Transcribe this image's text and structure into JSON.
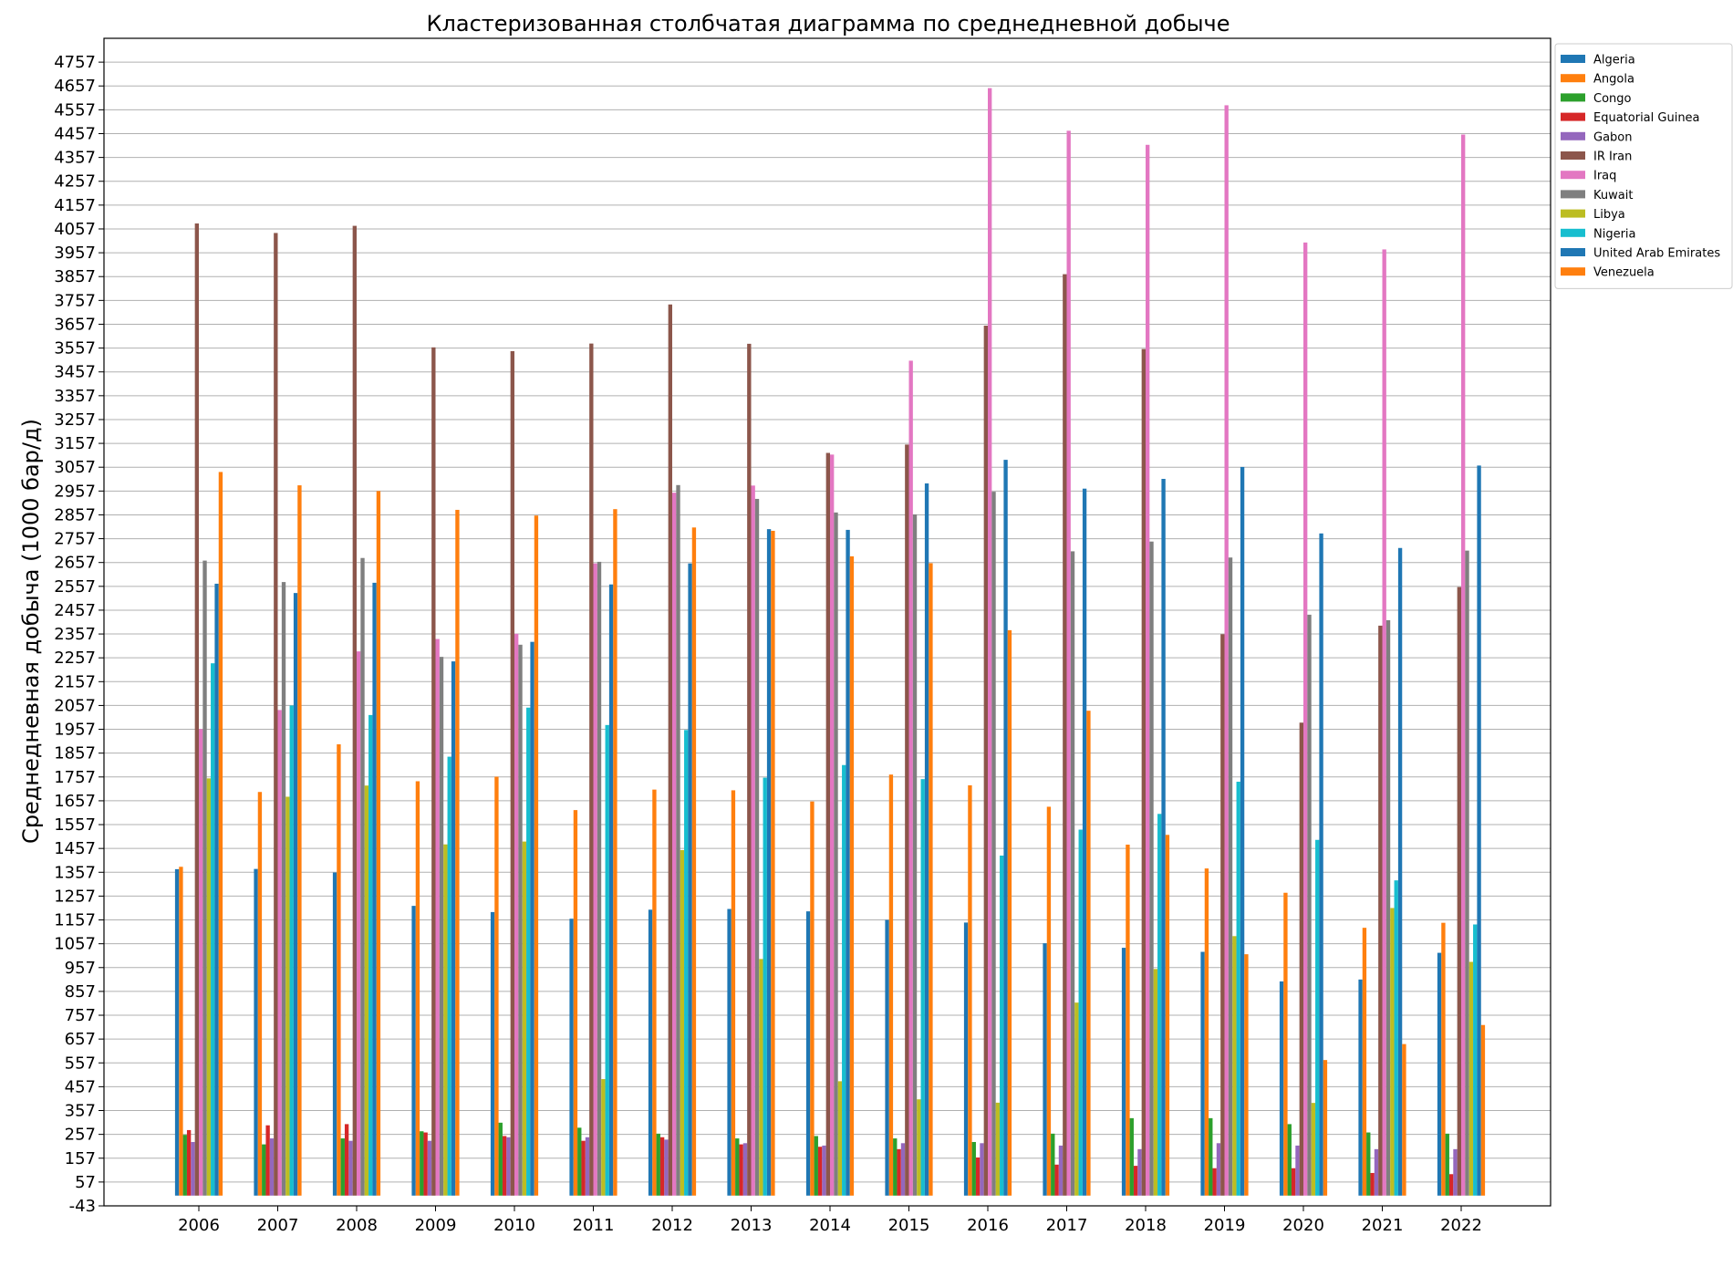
{
  "chart_data": {
    "type": "bar",
    "title": "Кластеризованная столбчатая диаграмма по среднедневной добыче",
    "xlabel": "",
    "ylabel": "Среднедневная добыча (1000 бар/д)",
    "ylim": [
      -43,
      4857
    ],
    "yticks": [
      "-43",
      "57",
      "157",
      "257",
      "357",
      "457",
      "557",
      "657",
      "757",
      "857",
      "957",
      "1057",
      "1157",
      "1257",
      "1357",
      "1457",
      "1557",
      "1657",
      "1757",
      "1857",
      "1957",
      "2057",
      "2157",
      "2257",
      "2357",
      "2457",
      "2557",
      "2657",
      "2757",
      "2857",
      "2957",
      "3057",
      "3157",
      "3257",
      "3357",
      "3457",
      "3557",
      "3657",
      "3757",
      "3857",
      "3957",
      "4057",
      "4157",
      "4257",
      "4357",
      "4457",
      "4557",
      "4657",
      "4757"
    ],
    "categories": [
      "2006",
      "2007",
      "2008",
      "2009",
      "2010",
      "2011",
      "2012",
      "2013",
      "2014",
      "2015",
      "2016",
      "2017",
      "2018",
      "2019",
      "2020",
      "2021",
      "2022"
    ],
    "grid": "horizontal",
    "legend_position": "top-right, outside plot",
    "series": [
      {
        "name": "Algeria",
        "color": "#1f77b4",
        "values": [
          1370,
          1371,
          1356,
          1216,
          1190,
          1162,
          1200,
          1203,
          1193,
          1157,
          1146,
          1059,
          1040,
          1023,
          899,
          907,
          1019
        ]
      },
      {
        "name": "Angola",
        "color": "#ff7f0e",
        "values": [
          1380,
          1694,
          1894,
          1739,
          1758,
          1618,
          1704,
          1701,
          1654,
          1767,
          1722,
          1632,
          1473,
          1373,
          1271,
          1124,
          1145
        ]
      },
      {
        "name": "Congo",
        "color": "#2ca02c",
        "values": [
          255,
          215,
          240,
          270,
          306,
          285,
          260,
          240,
          250,
          240,
          225,
          260,
          325,
          325,
          300,
          265,
          260
        ]
      },
      {
        "name": "Equatorial Guinea",
        "color": "#d62728",
        "values": [
          275,
          295,
          300,
          265,
          250,
          230,
          245,
          215,
          205,
          195,
          160,
          130,
          125,
          115,
          115,
          95,
          90
        ]
      },
      {
        "name": "Gabon",
        "color": "#9467bd",
        "values": [
          225,
          240,
          230,
          230,
          245,
          245,
          235,
          220,
          210,
          220,
          220,
          210,
          195,
          220,
          210,
          195,
          195
        ]
      },
      {
        "name": "IR Iran",
        "color": "#8c564b",
        "values": [
          4080,
          4040,
          4070,
          3560,
          3544,
          3576,
          3740,
          3575,
          3117,
          3152,
          3651,
          3867,
          3553,
          2356,
          1985,
          2392,
          2554
        ]
      },
      {
        "name": "Iraq",
        "color": "#e377c2",
        "values": [
          1958,
          2038,
          2284,
          2336,
          2358,
          2653,
          2950,
          2980,
          3110,
          3504,
          4648,
          4469,
          4410,
          4576,
          4000,
          3971,
          4453
        ]
      },
      {
        "name": "Kuwait",
        "color": "#7f7f7f",
        "values": [
          2665,
          2575,
          2676,
          2261,
          2312,
          2660,
          2982,
          2924,
          2867,
          2859,
          2954,
          2704,
          2745,
          2678,
          2438,
          2415,
          2707
        ]
      },
      {
        "name": "Libya",
        "color": "#bcbd22",
        "values": [
          1751,
          1674,
          1721,
          1474,
          1486,
          489,
          1450,
          993,
          480,
          404,
          390,
          810,
          951,
          1089,
          389,
          1207,
          981
        ]
      },
      {
        "name": "Nigeria",
        "color": "#17becf",
        "values": [
          2234,
          2057,
          2017,
          1842,
          2048,
          1975,
          1954,
          1754,
          1807,
          1748,
          1427,
          1536,
          1602,
          1737,
          1493,
          1323,
          1138
        ]
      },
      {
        "name": "United Arab Emirates",
        "color": "#1f77b4",
        "values": [
          2568,
          2529,
          2572,
          2242,
          2324,
          2565,
          2653,
          2797,
          2794,
          2989,
          3088,
          2967,
          3008,
          3058,
          2779,
          2718,
          3064
        ]
      },
      {
        "name": "Venezuela",
        "color": "#ff7f0e",
        "values": [
          3037,
          2981,
          2957,
          2878,
          2854,
          2881,
          2804,
          2790,
          2683,
          2654,
          2373,
          2035,
          1514,
          1013,
          569,
          636,
          716
        ]
      }
    ]
  }
}
